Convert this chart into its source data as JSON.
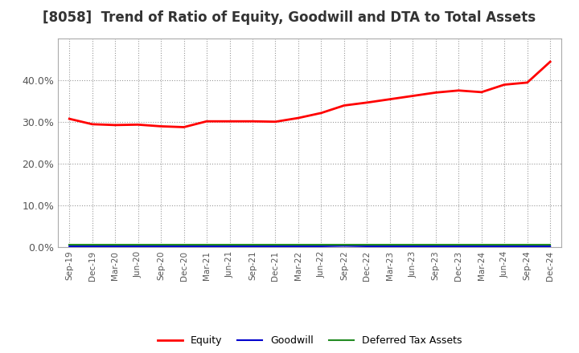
{
  "title": "[8058]  Trend of Ratio of Equity, Goodwill and DTA to Total Assets",
  "x_labels": [
    "Sep-19",
    "Dec-19",
    "Mar-20",
    "Jun-20",
    "Sep-20",
    "Dec-20",
    "Mar-21",
    "Jun-21",
    "Sep-21",
    "Dec-21",
    "Mar-22",
    "Jun-22",
    "Sep-22",
    "Dec-22",
    "Mar-23",
    "Jun-23",
    "Sep-23",
    "Dec-23",
    "Mar-24",
    "Jun-24",
    "Sep-24",
    "Dec-24"
  ],
  "equity": [
    0.308,
    0.295,
    0.293,
    0.294,
    0.29,
    0.288,
    0.302,
    0.302,
    0.302,
    0.301,
    0.31,
    0.322,
    0.34,
    0.347,
    0.355,
    0.363,
    0.371,
    0.376,
    0.372,
    0.39,
    0.395,
    0.445
  ],
  "goodwill": [
    0.002,
    0.002,
    0.002,
    0.002,
    0.002,
    0.002,
    0.002,
    0.002,
    0.002,
    0.002,
    0.002,
    0.002,
    0.003,
    0.002,
    0.002,
    0.002,
    0.002,
    0.002,
    0.002,
    0.002,
    0.002,
    0.002
  ],
  "dta": [
    0.005,
    0.005,
    0.005,
    0.005,
    0.005,
    0.005,
    0.005,
    0.005,
    0.005,
    0.005,
    0.005,
    0.005,
    0.005,
    0.005,
    0.005,
    0.005,
    0.005,
    0.005,
    0.005,
    0.005,
    0.005,
    0.005
  ],
  "equity_color": "#ff0000",
  "goodwill_color": "#0000cd",
  "dta_color": "#228b22",
  "ylim": [
    0.0,
    0.5
  ],
  "yticks": [
    0.0,
    0.1,
    0.2,
    0.3,
    0.4
  ],
  "background_color": "#ffffff",
  "plot_bg_color": "#ffffff",
  "grid_color": "#999999",
  "title_fontsize": 12,
  "title_color": "#333333",
  "tick_color": "#555555"
}
